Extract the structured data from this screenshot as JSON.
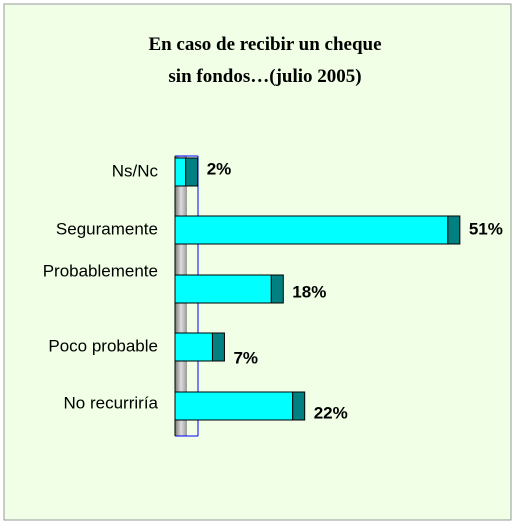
{
  "chart_data": {
    "type": "bar",
    "orientation": "horizontal",
    "title": "En caso de recibir un cheque sin fondos…(julio 2005)",
    "categories": [
      "Ns/Nc",
      "Seguramente",
      "Probablemente",
      "Poco probable",
      "No recurriría"
    ],
    "values": [
      2,
      51,
      18,
      7,
      22
    ],
    "value_labels": [
      "2%",
      "51%",
      "18%",
      "7%",
      "22%"
    ],
    "color": "#00ffff",
    "side_color": "#008080"
  }
}
